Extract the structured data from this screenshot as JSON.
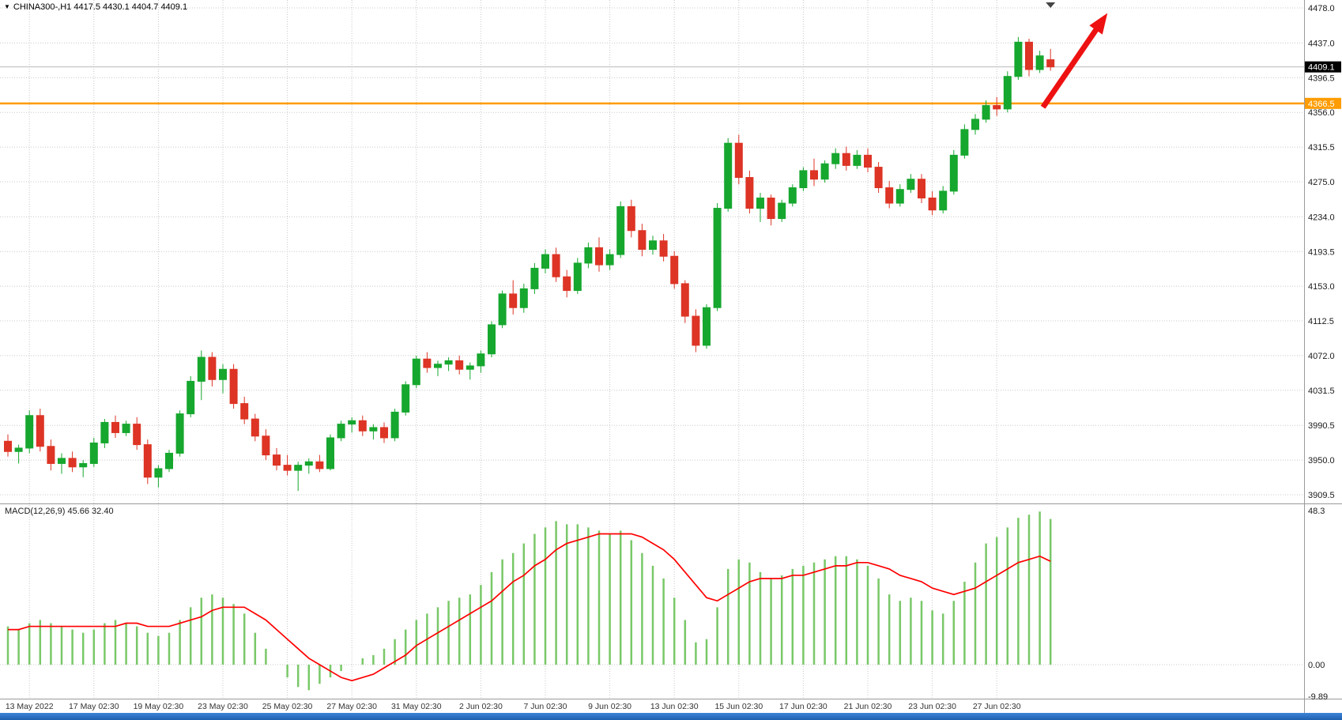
{
  "symbol_bar": {
    "marker_icon": "dropdown-marker",
    "text": "CHINA300-,H1 4417.5 4430.1 4404.7 4409.1"
  },
  "colors": {
    "bull": "#16a72e",
    "bear": "#dd3425",
    "macd_bar": "#79c868",
    "signal": "#ff0000",
    "grid": "#c8c8c8",
    "separator": "#9a9a9a",
    "current_price_line": "#b8b8b8",
    "hline": "#ff9c00",
    "current_label_bg": "#000000",
    "axis_text": "#1a1a1a",
    "arrow": "#ee1111",
    "shift_marker": "#444444"
  },
  "chart_data": {
    "type": "candlestick",
    "title": "CHINA300-,H1",
    "symbol": "CHINA300-",
    "timeframe": "H1",
    "current_ohlc": {
      "open": 4417.5,
      "high": 4430.1,
      "low": 4404.7,
      "close": 4409.1
    },
    "x_labels": [
      "13 May 2022",
      "17 May 02:30",
      "19 May 02:30",
      "23 May 02:30",
      "25 May 02:30",
      "27 May 02:30",
      "31 May 02:30",
      "2 Jun 02:30",
      "7 Jun 02:30",
      "9 Jun 02:30",
      "13 Jun 02:30",
      "15 Jun 02:30",
      "17 Jun 02:30",
      "21 Jun 02:30",
      "23 Jun 02:30",
      "27 Jun 02:30"
    ],
    "x_label_candle_indices": [
      2,
      8,
      14,
      20,
      26,
      32,
      38,
      44,
      50,
      56,
      62,
      68,
      74,
      80,
      86,
      92
    ],
    "y_axis": {
      "ticks": [
        4478.0,
        4437.0,
        4396.5,
        4356.0,
        4315.5,
        4275.0,
        4234.0,
        4193.5,
        4153.0,
        4112.5,
        4072.0,
        4031.5,
        3990.5,
        3950.0,
        3909.5
      ],
      "current_price": 4409.1,
      "current_price_label": "4409.1"
    },
    "horizontal_line": {
      "price": 4366.5,
      "label": "4366.5"
    },
    "candles_ohlc": [
      [
        3972,
        3980,
        3954,
        3960
      ],
      [
        3960,
        3968,
        3946,
        3964
      ],
      [
        3964,
        4008,
        3958,
        4002
      ],
      [
        4002,
        4010,
        3960,
        3966
      ],
      [
        3966,
        3974,
        3938,
        3946
      ],
      [
        3946,
        3958,
        3934,
        3952
      ],
      [
        3952,
        3960,
        3936,
        3942
      ],
      [
        3942,
        3950,
        3930,
        3946
      ],
      [
        3946,
        3976,
        3942,
        3970
      ],
      [
        3970,
        3998,
        3964,
        3994
      ],
      [
        3994,
        4002,
        3976,
        3982
      ],
      [
        3982,
        3996,
        3978,
        3992
      ],
      [
        3992,
        4000,
        3962,
        3968
      ],
      [
        3968,
        3974,
        3922,
        3930
      ],
      [
        3930,
        3944,
        3918,
        3940
      ],
      [
        3940,
        3962,
        3936,
        3958
      ],
      [
        3958,
        4008,
        3954,
        4004
      ],
      [
        4004,
        4048,
        4000,
        4042
      ],
      [
        4042,
        4078,
        4020,
        4070
      ],
      [
        4070,
        4076,
        4036,
        4044
      ],
      [
        4044,
        4062,
        4028,
        4056
      ],
      [
        4056,
        4062,
        4010,
        4016
      ],
      [
        4016,
        4024,
        3992,
        3998
      ],
      [
        3998,
        4004,
        3972,
        3978
      ],
      [
        3978,
        3986,
        3950,
        3956
      ],
      [
        3956,
        3964,
        3938,
        3944
      ],
      [
        3944,
        3956,
        3932,
        3938
      ],
      [
        3938,
        3948,
        3914,
        3944
      ],
      [
        3944,
        3952,
        3934,
        3948
      ],
      [
        3948,
        3956,
        3936,
        3940
      ],
      [
        3940,
        3980,
        3938,
        3976
      ],
      [
        3976,
        3996,
        3972,
        3992
      ],
      [
        3992,
        4000,
        3982,
        3996
      ],
      [
        3996,
        4002,
        3978,
        3984
      ],
      [
        3984,
        3992,
        3974,
        3988
      ],
      [
        3988,
        3994,
        3970,
        3976
      ],
      [
        3976,
        4010,
        3972,
        4006
      ],
      [
        4006,
        4042,
        4002,
        4038
      ],
      [
        4038,
        4072,
        4034,
        4068
      ],
      [
        4068,
        4076,
        4052,
        4058
      ],
      [
        4058,
        4066,
        4048,
        4062
      ],
      [
        4062,
        4070,
        4054,
        4066
      ],
      [
        4066,
        4072,
        4050,
        4056
      ],
      [
        4056,
        4064,
        4044,
        4060
      ],
      [
        4060,
        4078,
        4052,
        4074
      ],
      [
        4074,
        4112,
        4070,
        4108
      ],
      [
        4108,
        4148,
        4104,
        4144
      ],
      [
        4144,
        4160,
        4120,
        4128
      ],
      [
        4128,
        4156,
        4122,
        4150
      ],
      [
        4150,
        4180,
        4144,
        4174
      ],
      [
        4174,
        4196,
        4168,
        4190
      ],
      [
        4190,
        4198,
        4158,
        4164
      ],
      [
        4164,
        4172,
        4140,
        4148
      ],
      [
        4148,
        4186,
        4144,
        4180
      ],
      [
        4180,
        4204,
        4174,
        4198
      ],
      [
        4198,
        4210,
        4170,
        4178
      ],
      [
        4178,
        4196,
        4172,
        4190
      ],
      [
        4190,
        4252,
        4186,
        4246
      ],
      [
        4246,
        4254,
        4210,
        4218
      ],
      [
        4218,
        4226,
        4188,
        4196
      ],
      [
        4196,
        4212,
        4190,
        4206
      ],
      [
        4206,
        4214,
        4182,
        4188
      ],
      [
        4188,
        4194,
        4150,
        4156
      ],
      [
        4156,
        4160,
        4110,
        4118
      ],
      [
        4118,
        4126,
        4076,
        4084
      ],
      [
        4084,
        4132,
        4080,
        4128
      ],
      [
        4128,
        4250,
        4124,
        4244
      ],
      [
        4244,
        4326,
        4240,
        4320
      ],
      [
        4320,
        4330,
        4272,
        4280
      ],
      [
        4280,
        4288,
        4238,
        4244
      ],
      [
        4244,
        4262,
        4228,
        4256
      ],
      [
        4256,
        4260,
        4224,
        4232
      ],
      [
        4232,
        4254,
        4228,
        4250
      ],
      [
        4250,
        4272,
        4246,
        4268
      ],
      [
        4268,
        4292,
        4264,
        4288
      ],
      [
        4288,
        4302,
        4270,
        4278
      ],
      [
        4278,
        4300,
        4274,
        4296
      ],
      [
        4296,
        4314,
        4290,
        4308
      ],
      [
        4308,
        4316,
        4288,
        4294
      ],
      [
        4294,
        4312,
        4290,
        4306
      ],
      [
        4306,
        4314,
        4286,
        4292
      ],
      [
        4292,
        4298,
        4262,
        4268
      ],
      [
        4268,
        4276,
        4244,
        4250
      ],
      [
        4250,
        4272,
        4246,
        4266
      ],
      [
        4266,
        4284,
        4262,
        4278
      ],
      [
        4278,
        4284,
        4250,
        4256
      ],
      [
        4256,
        4264,
        4236,
        4242
      ],
      [
        4242,
        4270,
        4238,
        4264
      ],
      [
        4264,
        4312,
        4260,
        4306
      ],
      [
        4306,
        4342,
        4302,
        4336
      ],
      [
        4336,
        4354,
        4330,
        4348
      ],
      [
        4348,
        4370,
        4344,
        4364
      ],
      [
        4364,
        4374,
        4352,
        4360
      ],
      [
        4360,
        4404,
        4356,
        4398
      ],
      [
        4398,
        4444,
        4394,
        4438
      ],
      [
        4438,
        4442,
        4398,
        4406
      ],
      [
        4406,
        4428,
        4402,
        4422
      ],
      [
        4417.5,
        4430.1,
        4404.7,
        4409.1
      ]
    ],
    "indicator": {
      "name": "MACD",
      "params": "12,26,9",
      "label": "MACD(12,26,9) 45.66 32.40",
      "value": 45.66,
      "signal_value": 32.4,
      "y_tick_labels": [
        "48.3",
        "0.00",
        "-9.89"
      ],
      "y_tick_values": [
        48.3,
        0,
        -9.89
      ],
      "histogram": [
        12,
        11,
        13,
        14,
        13,
        12,
        11,
        10,
        11,
        13,
        14,
        13,
        12,
        10,
        9,
        10,
        14,
        18,
        21,
        22,
        21,
        19,
        16,
        10,
        5,
        0,
        -4,
        -7,
        -8,
        -6,
        -4,
        -2,
        0,
        2,
        3,
        5,
        8,
        11,
        14,
        16,
        18,
        20,
        21,
        22,
        25,
        29,
        33,
        35,
        38,
        41,
        43,
        45,
        44,
        44,
        43,
        42,
        41,
        42,
        39,
        35,
        31,
        27,
        21,
        14,
        7,
        8,
        18,
        30,
        33,
        32,
        29,
        27,
        28,
        30,
        31,
        32,
        33,
        34,
        34,
        33,
        31,
        27,
        22,
        20,
        21,
        20,
        17,
        16,
        20,
        26,
        32,
        38,
        40,
        43,
        46,
        47,
        48,
        45.66
      ],
      "signal": [
        11,
        11,
        12,
        12,
        12,
        12,
        12,
        12,
        12,
        12,
        12,
        13,
        13,
        12,
        12,
        12,
        13,
        14,
        15,
        17,
        18,
        18,
        18,
        16,
        14,
        11,
        8,
        5,
        2,
        0,
        -2,
        -4,
        -5,
        -4,
        -3,
        -1,
        1,
        3,
        6,
        8,
        10,
        12,
        14,
        16,
        18,
        20,
        23,
        26,
        28,
        31,
        33,
        36,
        38,
        39,
        40,
        41,
        41,
        41,
        41,
        40,
        38,
        36,
        33,
        29,
        25,
        21,
        20,
        22,
        24,
        26,
        27,
        27,
        27,
        28,
        28,
        29,
        30,
        31,
        31,
        32,
        32,
        31,
        30,
        28,
        27,
        26,
        24,
        23,
        22,
        23,
        24,
        26,
        28,
        30,
        32,
        33,
        34,
        32.4
      ]
    },
    "annotations": {
      "arrow": {
        "from_index": 96.3,
        "from_price": 4362,
        "to_index": 102.3,
        "to_price": 4472
      },
      "shift_marker_index": 97
    }
  }
}
